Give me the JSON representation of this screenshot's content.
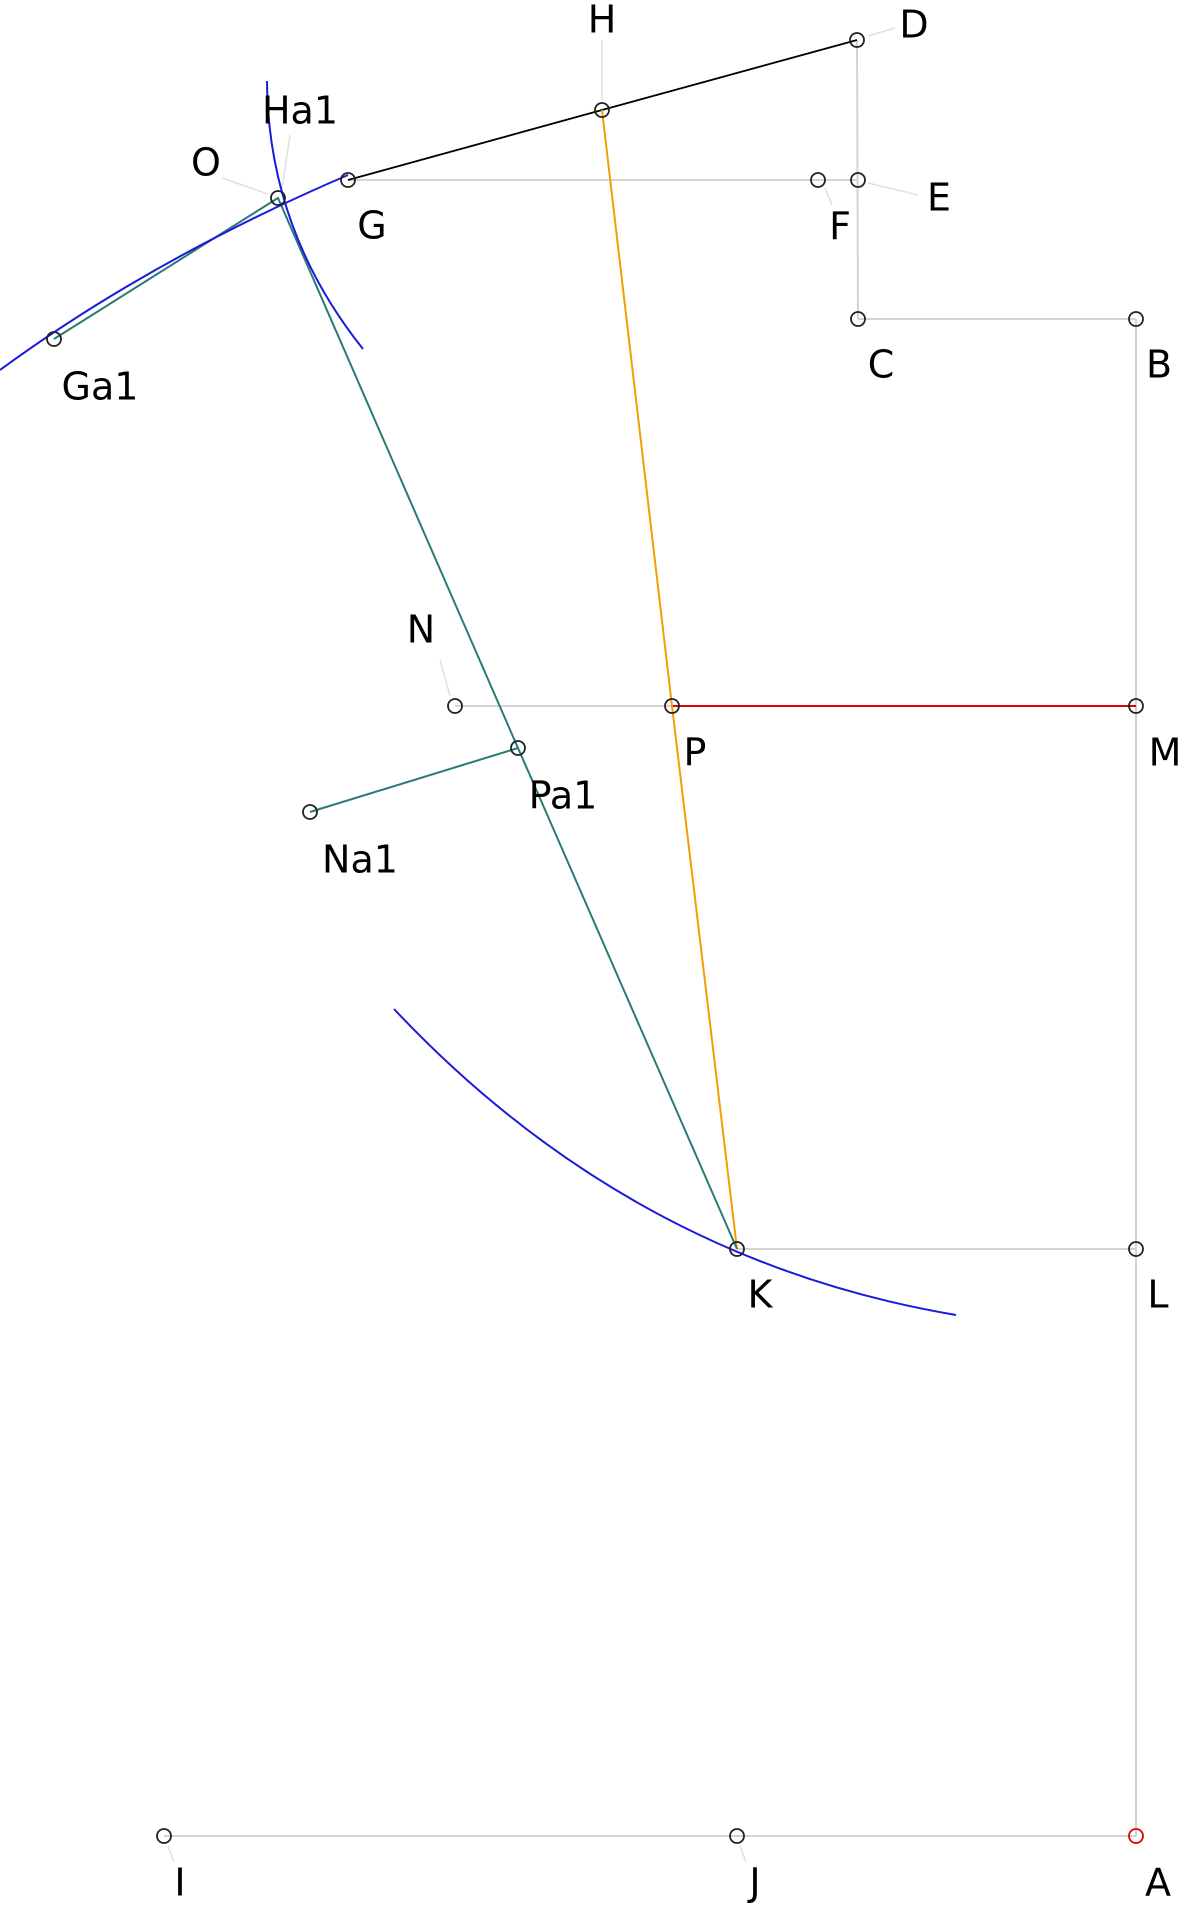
{
  "points": [
    {
      "label": "D"
    },
    {
      "label": "H"
    },
    {
      "label": "Ha1"
    },
    {
      "label": "O"
    },
    {
      "label": "G"
    },
    {
      "label": "F"
    },
    {
      "label": "E"
    },
    {
      "label": "C"
    },
    {
      "label": "B"
    },
    {
      "label": "Ga1"
    },
    {
      "label": "N"
    },
    {
      "label": "P"
    },
    {
      "label": "M"
    },
    {
      "label": "Pa1"
    },
    {
      "label": "Na1"
    },
    {
      "label": "K"
    },
    {
      "label": "L"
    },
    {
      "label": "I"
    },
    {
      "label": "J"
    },
    {
      "label": "A"
    }
  ]
}
